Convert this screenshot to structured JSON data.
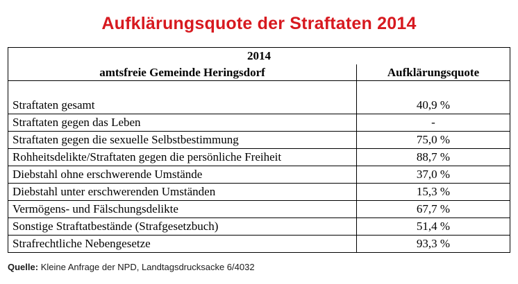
{
  "title": "Aufklärungsquote der Straftaten 2014",
  "chart_data": {
    "type": "table",
    "year_header": "2014",
    "columns": [
      "amtsfreie Gemeinde Heringsdorf",
      "Aufklärungsquote"
    ],
    "rows": [
      {
        "label": "Straftaten gesamt",
        "value": "40,9 %"
      },
      {
        "label": "Straftaten gegen das Leben",
        "value": "-"
      },
      {
        "label": "Straftaten gegen die sexuelle Selbstbestimmung",
        "value": "75,0 %"
      },
      {
        "label": "Rohheitsdelikte/Straftaten gegen die persönliche Freiheit",
        "value": "88,7 %"
      },
      {
        "label": "Diebstahl ohne erschwerende Umstände",
        "value": "37,0 %"
      },
      {
        "label": "Diebstahl unter erschwerenden Umständen",
        "value": "15,3 %"
      },
      {
        "label": "Vermögens- und Fälschungsdelikte",
        "value": "67,7 %"
      },
      {
        "label": "Sonstige Straftatbestände (Strafgesetzbuch)",
        "value": "51,4 %"
      },
      {
        "label": "Strafrechtliche Nebengesetze",
        "value": "93,3 %"
      }
    ]
  },
  "source": {
    "label": "Quelle:",
    "text": "Kleine Anfrage der NPD, Landtagsdrucksacke 6/4032"
  }
}
